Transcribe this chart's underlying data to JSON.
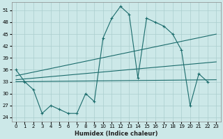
{
  "title": "",
  "xlabel": "Humidex (Indice chaleur)",
  "xlim": [
    -0.5,
    23.5
  ],
  "ylim": [
    23,
    53
  ],
  "yticks": [
    24,
    27,
    30,
    33,
    36,
    39,
    42,
    45,
    48,
    51
  ],
  "xticks": [
    0,
    1,
    2,
    3,
    4,
    5,
    6,
    7,
    8,
    9,
    10,
    11,
    12,
    13,
    14,
    15,
    16,
    17,
    18,
    19,
    20,
    21,
    22,
    23
  ],
  "bg_color": "#cce8e8",
  "line_color": "#1a6b6b",
  "grid_color": "#aacece",
  "series_main_x": [
    0,
    1,
    2,
    3,
    4,
    5,
    6,
    7,
    8,
    9,
    10,
    11,
    12,
    13,
    14,
    15,
    16,
    17,
    18,
    19,
    20,
    21,
    22
  ],
  "series_main_y": [
    36,
    33,
    31,
    25,
    27,
    26,
    25,
    25,
    30,
    28,
    44,
    49,
    52,
    50,
    34,
    49,
    48,
    47,
    45,
    41,
    27,
    35,
    33
  ],
  "trendline1_x": [
    0,
    23
  ],
  "trendline1_y": [
    33,
    33.5
  ],
  "trendline2_x": [
    0,
    23
  ],
  "trendline2_y": [
    33.5,
    38
  ],
  "trendline3_x": [
    0,
    23
  ],
  "trendline3_y": [
    34.5,
    45
  ]
}
